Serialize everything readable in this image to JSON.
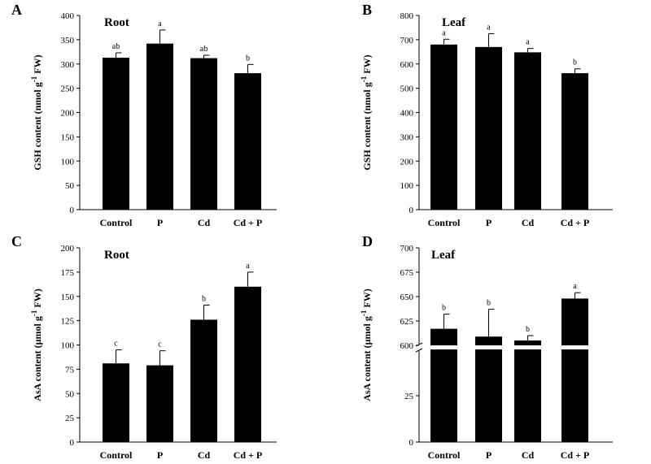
{
  "chart_data": [
    {
      "type": "bar",
      "panel": "A",
      "title": "Root",
      "ylabel": "GSH content (nmol g-1 FW)",
      "ylabel_main": "GSH content (nmol g",
      "ylabel_sup": "-1",
      "ylabel_tail": " FW)",
      "categories": [
        "Control",
        "P",
        "Cd",
        "Cd + P"
      ],
      "values": [
        313,
        342,
        312,
        281
      ],
      "errors": [
        10,
        28,
        6,
        18
      ],
      "significance": [
        "ab",
        "a",
        "ab",
        "b"
      ],
      "ylim": [
        0,
        400
      ],
      "yticks": [
        0,
        50,
        100,
        150,
        200,
        250,
        300,
        350,
        400
      ]
    },
    {
      "type": "bar",
      "panel": "B",
      "title": "Leaf",
      "ylabel": "GSH content (nmol g-1 FW)",
      "ylabel_main": "GSH content (nmol g",
      "ylabel_sup": "-1",
      "ylabel_tail": " FW)",
      "categories": [
        "Control",
        "P",
        "Cd",
        "Cd + P"
      ],
      "values": [
        680,
        670,
        648,
        562
      ],
      "errors": [
        22,
        55,
        16,
        18
      ],
      "significance": [
        "a",
        "a",
        "a",
        "b"
      ],
      "ylim": [
        0,
        800
      ],
      "yticks": [
        0,
        100,
        200,
        300,
        400,
        500,
        600,
        700,
        800
      ]
    },
    {
      "type": "bar",
      "panel": "C",
      "title": "Root",
      "ylabel": "AsA content (µmol g-1 FW)",
      "ylabel_main": "AsA content (µmol g",
      "ylabel_sup": "-1",
      "ylabel_tail": " FW)",
      "categories": [
        "Control",
        "P",
        "Cd",
        "Cd + P"
      ],
      "values": [
        81,
        79,
        126,
        160
      ],
      "errors": [
        14,
        15,
        15,
        15
      ],
      "significance": [
        "c",
        "c",
        "b",
        "a"
      ],
      "ylim": [
        0,
        200
      ],
      "yticks": [
        0,
        25,
        50,
        75,
        100,
        125,
        150,
        175,
        200
      ]
    },
    {
      "type": "bar",
      "panel": "D",
      "title": "Leaf",
      "ylabel": "AsA content (µmol g-1 FW)",
      "ylabel_main": "AsA content (µmol g",
      "ylabel_sup": "-1",
      "ylabel_tail": " FW)",
      "categories": [
        "Control",
        "P",
        "Cd",
        "Cd + P"
      ],
      "values": [
        617,
        609,
        605,
        648
      ],
      "errors": [
        15,
        28,
        5,
        6
      ],
      "significance": [
        "b",
        "b",
        "b",
        "a"
      ],
      "axis_break": true,
      "lower_range": [
        0,
        50
      ],
      "lower_ticks": [
        0,
        25
      ],
      "upper_range": [
        600,
        700
      ],
      "upper_ticks": [
        600,
        625,
        650,
        675,
        700
      ]
    }
  ]
}
